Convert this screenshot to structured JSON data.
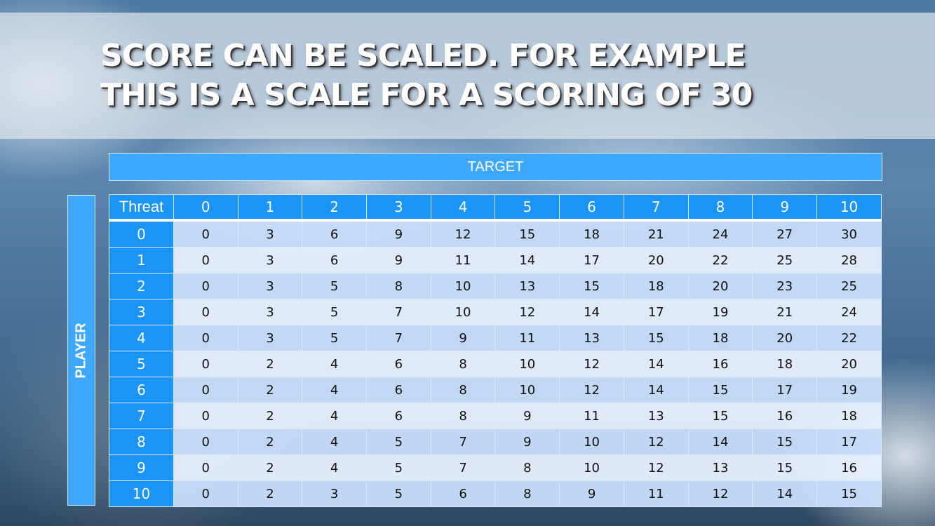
{
  "slide": {
    "title_lines": [
      "SCORE CAN BE SCALED. FOR EXAMPLE",
      "THIS IS A SCALE FOR A SCORING OF 30"
    ],
    "target_label": "TARGET",
    "player_label": "PLAYER"
  },
  "table": {
    "corner_label": "Threat",
    "columns": [
      "0",
      "1",
      "2",
      "3",
      "4",
      "5",
      "6",
      "7",
      "8",
      "9",
      "10"
    ],
    "rows": [
      {
        "label": "0",
        "values": [
          "0",
          "3",
          "6",
          "9",
          "12",
          "15",
          "18",
          "21",
          "24",
          "27",
          "30"
        ]
      },
      {
        "label": "1",
        "values": [
          "0",
          "3",
          "6",
          "9",
          "11",
          "14",
          "17",
          "20",
          "22",
          "25",
          "28"
        ]
      },
      {
        "label": "2",
        "values": [
          "0",
          "3",
          "5",
          "8",
          "10",
          "13",
          "15",
          "18",
          "20",
          "23",
          "25"
        ]
      },
      {
        "label": "3",
        "values": [
          "0",
          "3",
          "5",
          "7",
          "10",
          "12",
          "14",
          "17",
          "19",
          "21",
          "24"
        ]
      },
      {
        "label": "4",
        "values": [
          "0",
          "3",
          "5",
          "7",
          "9",
          "11",
          "13",
          "15",
          "18",
          "20",
          "22"
        ]
      },
      {
        "label": "5",
        "values": [
          "0",
          "2",
          "4",
          "6",
          "8",
          "10",
          "12",
          "14",
          "16",
          "18",
          "20"
        ]
      },
      {
        "label": "6",
        "values": [
          "0",
          "2",
          "4",
          "6",
          "8",
          "10",
          "12",
          "14",
          "15",
          "17",
          "19"
        ]
      },
      {
        "label": "7",
        "values": [
          "0",
          "2",
          "4",
          "6",
          "8",
          "9",
          "11",
          "13",
          "15",
          "16",
          "18"
        ]
      },
      {
        "label": "8",
        "values": [
          "0",
          "2",
          "4",
          "5",
          "7",
          "9",
          "10",
          "12",
          "14",
          "15",
          "17"
        ]
      },
      {
        "label": "9",
        "values": [
          "0",
          "2",
          "4",
          "5",
          "7",
          "8",
          "10",
          "12",
          "13",
          "15",
          "16"
        ]
      },
      {
        "label": "10",
        "values": [
          "0",
          "2",
          "3",
          "5",
          "6",
          "8",
          "9",
          "11",
          "12",
          "14",
          "15"
        ]
      }
    ]
  },
  "colors": {
    "header_blue": "#1a94f7",
    "label_blue": "#3ea8ff",
    "row_dark": "#c8ddfa",
    "row_light": "#e8f0fd"
  }
}
